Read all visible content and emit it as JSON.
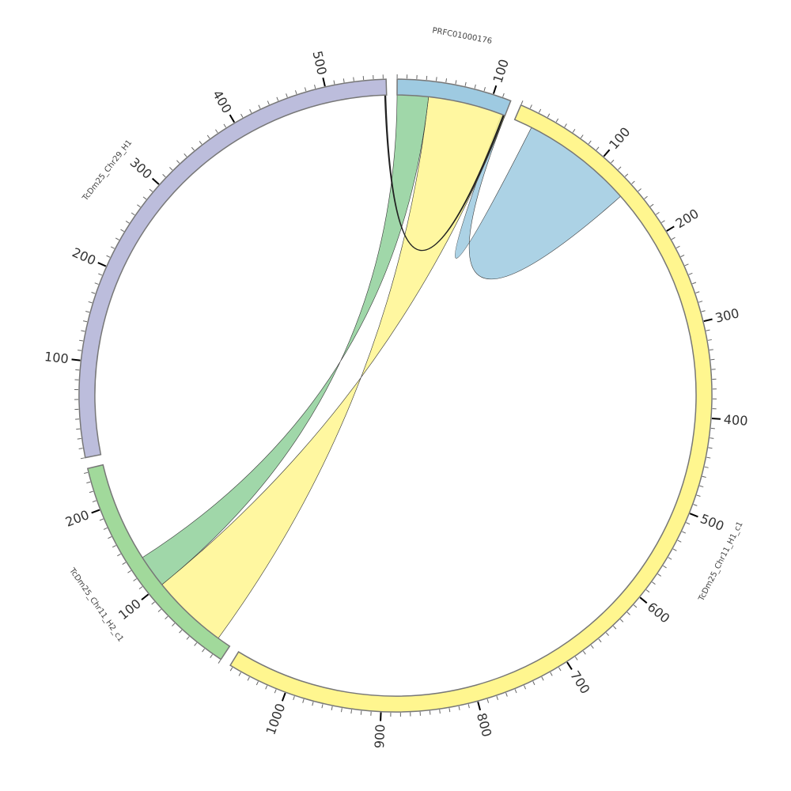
{
  "diagram": {
    "type": "chord",
    "units_per_tick_minor": 10,
    "units_per_tick_major": 100,
    "segments": [
      {
        "id": "blue",
        "name": "PRFC01000176",
        "length": 119,
        "color": "#9ecae1",
        "tick_labels": [
          "100"
        ]
      },
      {
        "id": "yellow",
        "name": "TcDm25_Chr11_H1_c1",
        "length": 1063,
        "color": "#fff68f",
        "tick_labels": [
          "100",
          "200",
          "300",
          "400",
          "500",
          "600",
          "700",
          "800",
          "900",
          "1000"
        ]
      },
      {
        "id": "green",
        "name": "TcDm25_Chr11_H2_c1",
        "length": 244,
        "color": "#a1d99b",
        "tick_labels": [
          "100",
          "200"
        ]
      },
      {
        "id": "purple",
        "name": "TcDm25_Chr29_H1",
        "length": 563,
        "color": "#bcbddc",
        "tick_labels": [
          "100",
          "200",
          "300",
          "400",
          "500"
        ]
      }
    ],
    "links": [
      {
        "a": {
          "seg": "blue",
          "start": 115,
          "end": 119
        },
        "b": {
          "seg": "yellow",
          "start": 142,
          "end": 20
        },
        "color": "#9ecae1"
      },
      {
        "a": {
          "seg": "blue",
          "start": 34,
          "end": 119
        },
        "b": {
          "seg": "green",
          "start": 99,
          "end": 15
        },
        "color": "#fff68f"
      },
      {
        "a": {
          "seg": "blue",
          "start": 0,
          "end": 34
        },
        "b": {
          "seg": "green",
          "start": 135,
          "end": 99
        },
        "color": "#8fd09a"
      },
      {
        "a": {
          "seg": "purple",
          "start": 561,
          "end": 562
        },
        "b": {
          "seg": "blue",
          "start": 117,
          "end": 118
        },
        "color": "none"
      }
    ]
  }
}
